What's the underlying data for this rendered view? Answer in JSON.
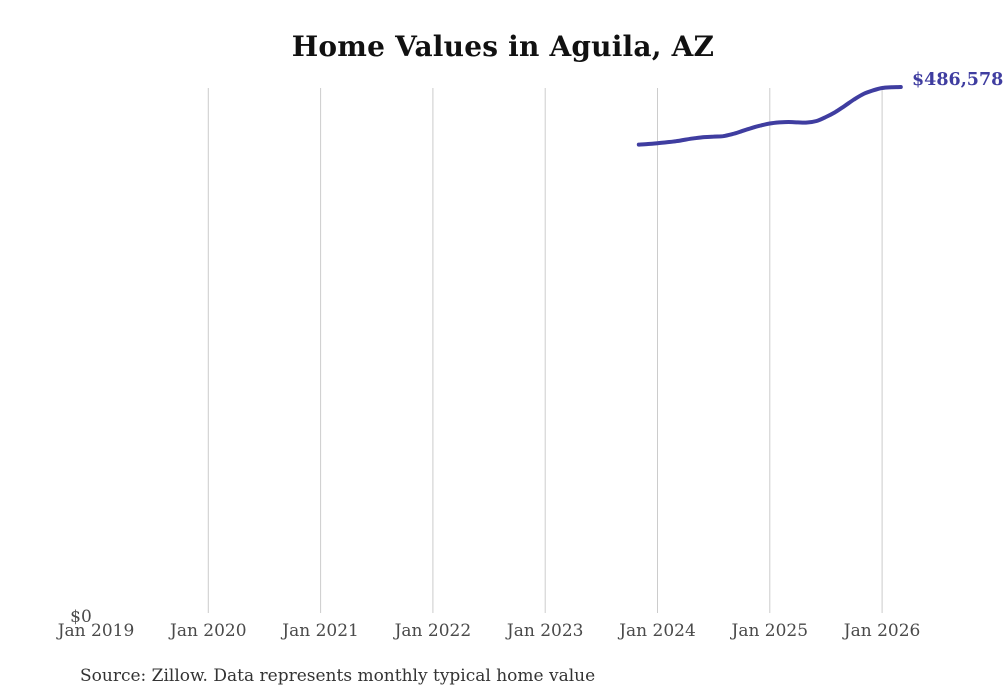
{
  "page": {
    "background": "#ffffff"
  },
  "source_note": "Source: Zillow. Data represents monthly typical home value",
  "chart_data": {
    "type": "line",
    "title": "Home Values in Aguila, AZ",
    "legend": "none",
    "grid": "vertical-only",
    "gridline_color": "#cccccc",
    "x_axis": {
      "ticks": [
        {
          "label": "Jan 2019",
          "year": 2019,
          "gridline": false
        },
        {
          "label": "Jan 2020",
          "year": 2020,
          "gridline": true
        },
        {
          "label": "Jan 2021",
          "year": 2021,
          "gridline": true
        },
        {
          "label": "Jan 2022",
          "year": 2022,
          "gridline": true
        },
        {
          "label": "Jan 2023",
          "year": 2023,
          "gridline": true
        },
        {
          "label": "Jan 2024",
          "year": 2024,
          "gridline": true
        },
        {
          "label": "Jan 2025",
          "year": 2025,
          "gridline": true
        },
        {
          "label": "Jan 2026",
          "year": 2026,
          "gridline": true
        }
      ]
    },
    "y_axis": {
      "zero_label": "$0",
      "ylim": [
        0,
        486578
      ]
    },
    "series": [
      {
        "name": "Monthly typical home value",
        "color": "#3f3da0",
        "end_label": "$486,578",
        "points": [
          {
            "month": "2023-11",
            "value": 433300
          },
          {
            "month": "2023-12",
            "value": 433800
          },
          {
            "month": "2024-01",
            "value": 434600
          },
          {
            "month": "2024-02",
            "value": 435500
          },
          {
            "month": "2024-03",
            "value": 436400
          },
          {
            "month": "2024-04",
            "value": 437900
          },
          {
            "month": "2024-05",
            "value": 439200
          },
          {
            "month": "2024-06",
            "value": 440200
          },
          {
            "month": "2024-07",
            "value": 440700
          },
          {
            "month": "2024-08",
            "value": 441100
          },
          {
            "month": "2024-09",
            "value": 443000
          },
          {
            "month": "2024-10",
            "value": 445700
          },
          {
            "month": "2024-11",
            "value": 448500
          },
          {
            "month": "2024-12",
            "value": 450900
          },
          {
            "month": "2025-01",
            "value": 452800
          },
          {
            "month": "2025-02",
            "value": 453800
          },
          {
            "month": "2025-03",
            "value": 454200
          },
          {
            "month": "2025-04",
            "value": 453800
          },
          {
            "month": "2025-05",
            "value": 453700
          },
          {
            "month": "2025-06",
            "value": 455100
          },
          {
            "month": "2025-07",
            "value": 458800
          },
          {
            "month": "2025-08",
            "value": 463400
          },
          {
            "month": "2025-09",
            "value": 469100
          },
          {
            "month": "2025-10",
            "value": 475000
          },
          {
            "month": "2025-11",
            "value": 480100
          },
          {
            "month": "2025-12",
            "value": 483400
          },
          {
            "month": "2026-01",
            "value": 485700
          },
          {
            "month": "2026-02",
            "value": 486400
          },
          {
            "month": "2026-03",
            "value": 486578
          }
        ]
      }
    ]
  }
}
